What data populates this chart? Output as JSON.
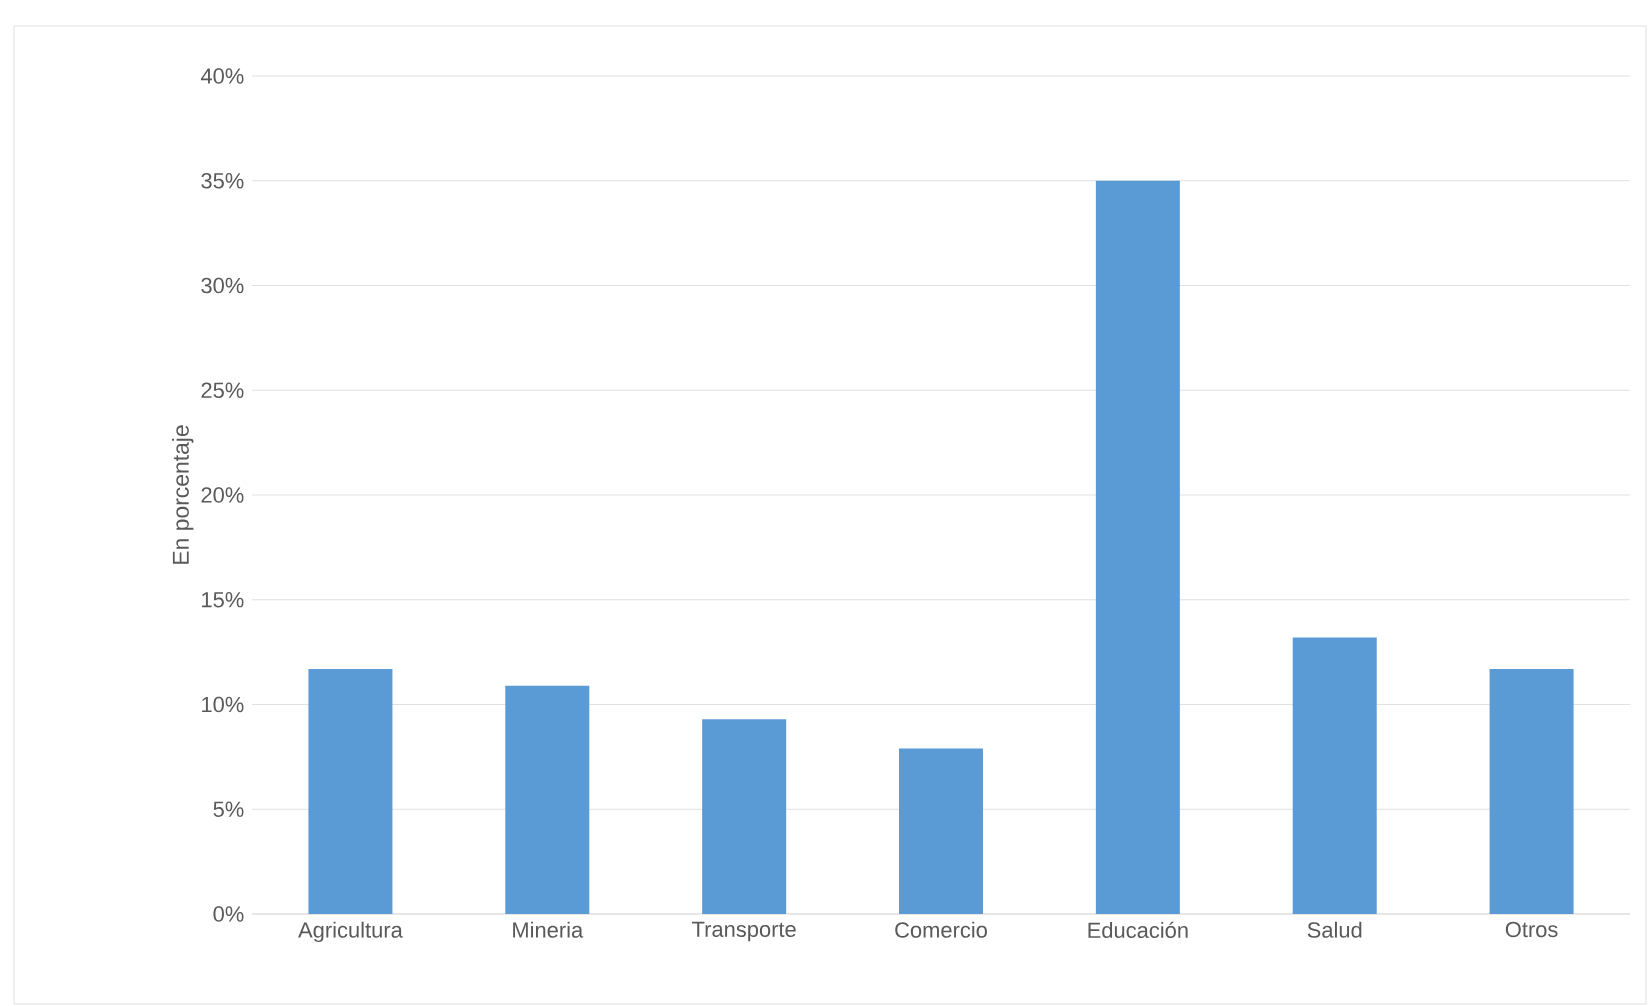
{
  "chart_data": {
    "type": "bar",
    "ylabel": "En porcentaje",
    "categories": [
      "Agricultura",
      "Mineria",
      "Transporte",
      "Comercio",
      "Educación",
      "Salud",
      "Otros"
    ],
    "values": [
      11.7,
      10.9,
      9.3,
      7.9,
      35.0,
      13.2,
      11.7
    ],
    "color": "#5b9bd5",
    "ylim": [
      0,
      40
    ],
    "yticks": [
      {
        "value": 0,
        "label": "0%"
      },
      {
        "value": 5,
        "label": "5%"
      },
      {
        "value": 10,
        "label": "10%"
      },
      {
        "value": 15,
        "label": "15%"
      },
      {
        "value": 20,
        "label": "20%"
      },
      {
        "value": 25,
        "label": "25%"
      },
      {
        "value": 30,
        "label": "30%"
      },
      {
        "value": 35,
        "label": "35%"
      },
      {
        "value": 40,
        "label": "40%"
      }
    ],
    "grid": "y"
  }
}
